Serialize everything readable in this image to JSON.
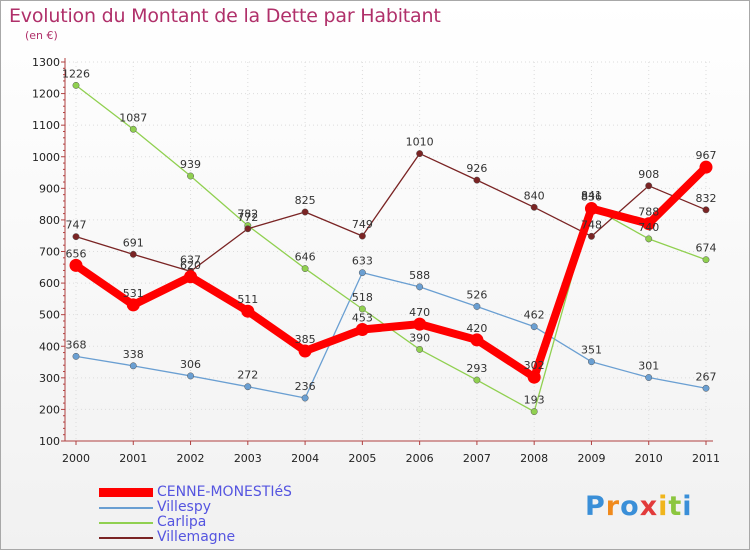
{
  "title": "Evolution du Montant de la Dette par Habitant",
  "subtitle": "(en €)",
  "logo": "Proxiti",
  "chart_data": {
    "type": "line",
    "title": "Evolution du Montant de la Dette par Habitant",
    "ylabel": "(en €)",
    "ylim": [
      100,
      1300
    ],
    "yticks": [
      100,
      200,
      300,
      400,
      500,
      600,
      700,
      800,
      900,
      1000,
      1100,
      1200,
      1300
    ],
    "x": [
      "2000",
      "2001",
      "2002",
      "2003",
      "2004",
      "2005",
      "2006",
      "2007",
      "2008",
      "2009",
      "2010",
      "2011"
    ],
    "grid": true,
    "legend": "bottom-left",
    "series": [
      {
        "name": "CENNE-MONESTIéS",
        "color": "#ff0000",
        "values": [
          656,
          531,
          620,
          511,
          385,
          453,
          470,
          420,
          302,
          836,
          788,
          967
        ]
      },
      {
        "name": "Villespy",
        "color": "#6a9fd2",
        "values": [
          368,
          338,
          306,
          272,
          236,
          633,
          588,
          526,
          462,
          351,
          301,
          267
        ]
      },
      {
        "name": "Carlipa",
        "color": "#90d050",
        "values": [
          1226,
          1087,
          939,
          782,
          646,
          518,
          390,
          293,
          193,
          841,
          740,
          674
        ]
      },
      {
        "name": "Villemagne",
        "color": "#7a2424",
        "values": [
          747,
          691,
          637,
          772,
          825,
          749,
          1010,
          926,
          840,
          748,
          908,
          832
        ]
      }
    ]
  }
}
